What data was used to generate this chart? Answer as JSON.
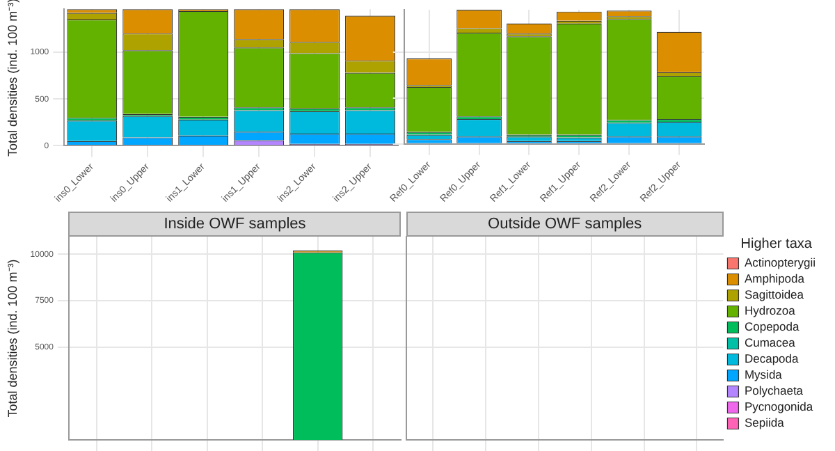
{
  "chart_data": [
    {
      "type": "bar",
      "stacked": true,
      "ylabel": "Total densities (ind. 100 m⁻³)",
      "categories": [
        "ins0_Lower",
        "ins0_Upper",
        "ins1_Lower",
        "ins1_Upper",
        "ins2_Lower",
        "ins2_Upper"
      ],
      "ylim": [
        0,
        1460
      ],
      "yticks": [
        0,
        500,
        1000
      ],
      "grid": true,
      "series": [
        {
          "color": "#b385ff",
          "values": [
            10,
            10,
            10,
            60,
            20,
            20
          ]
        },
        {
          "color": "#00a6ff",
          "values": [
            40,
            80,
            100,
            90,
            110,
            110
          ]
        },
        {
          "color": "#00bade",
          "values": [
            220,
            230,
            170,
            230,
            240,
            250
          ]
        },
        {
          "color": "#00bd5c",
          "values": [
            30,
            20,
            30,
            30,
            30,
            30
          ]
        },
        {
          "color": "#64b200",
          "values": [
            1050,
            680,
            1130,
            640,
            590,
            370
          ]
        },
        {
          "color": "#aea200",
          "values": [
            70,
            180,
            0,
            90,
            120,
            130
          ]
        },
        {
          "color": "#db8e00",
          "values": [
            40,
            260,
            20,
            320,
            350,
            480
          ]
        }
      ]
    },
    {
      "type": "bar",
      "stacked": true,
      "categories": [
        "Ref0_Lower",
        "Ref0_Upper",
        "Ref1_Lower",
        "Ref1_Upper",
        "Ref2_Lower",
        "Ref2_Upper"
      ],
      "ylim": [
        0,
        1460
      ],
      "yticks": [
        0,
        500,
        1000
      ],
      "grid": true,
      "tick_labels": "x",
      "series": [
        {
          "color": "#b385ff",
          "values": [
            0,
            0,
            0,
            0,
            null,
            null
          ]
        },
        {
          "color": "#00a6ff",
          "values": [
            50,
            80,
            30,
            30,
            80,
            80
          ]
        },
        {
          "color": "#00bade",
          "values": [
            50,
            190,
            50,
            40,
            150,
            160
          ]
        },
        {
          "color": "#00bd5c",
          "values": [
            30,
            30,
            20,
            30,
            30,
            30
          ]
        },
        {
          "color": "#64b200",
          "values": [
            490,
            910,
            1070,
            1210,
            1100,
            470
          ]
        },
        {
          "color": "#aea200",
          "values": [
            20,
            50,
            30,
            30,
            30,
            40
          ]
        },
        {
          "color": "#db8e00",
          "values": [
            290,
            200,
            110,
            100,
            60,
            440
          ]
        }
      ]
    },
    {
      "type": "bar",
      "stacked": true,
      "title": "Inside OWF samples",
      "ylabel": "Total densities (ind. 100 m⁻³)",
      "categories": [
        null,
        null,
        null,
        null,
        null,
        null
      ],
      "ylim": [
        0,
        10950
      ],
      "yticks": [
        5000,
        7500,
        10000
      ],
      "grid": true,
      "tick_labels": "y",
      "series": [
        {
          "color": "#00bd5c",
          "values": [
            null,
            null,
            null,
            null,
            10100,
            null
          ]
        },
        {
          "color": "#db8e00",
          "values": [
            null,
            null,
            null,
            null,
            100,
            null
          ]
        }
      ]
    },
    {
      "type": "bar",
      "stacked": true,
      "title": "Outside OWF samples",
      "categories": [
        null,
        null,
        null,
        null,
        null,
        null
      ],
      "ylim": [
        0,
        10950
      ],
      "yticks": [
        5000,
        7500,
        10000
      ],
      "grid": true,
      "tick_labels": false,
      "legend": "right",
      "legend_title": "Higher taxa",
      "series": [
        {
          "name": "Actinopterygii",
          "color": "#f8766d",
          "values": [
            null,
            null,
            null,
            null,
            null,
            null
          ]
        },
        {
          "name": "Amphipoda",
          "color": "#db8e00",
          "values": [
            null,
            null,
            null,
            null,
            null,
            null
          ]
        },
        {
          "name": "Sagittoidea",
          "color": "#aea200",
          "values": [
            null,
            null,
            null,
            null,
            null,
            null
          ]
        },
        {
          "name": "Hydrozoa",
          "color": "#64b200",
          "values": [
            null,
            null,
            null,
            null,
            null,
            null
          ]
        },
        {
          "name": "Copepoda",
          "color": "#00bd5c",
          "values": [
            null,
            null,
            null,
            null,
            null,
            null
          ]
        },
        {
          "name": "Cumacea",
          "color": "#00c1a7",
          "values": [
            null,
            null,
            null,
            null,
            null,
            null
          ]
        },
        {
          "name": "Decapoda",
          "color": "#00bade",
          "values": [
            null,
            null,
            null,
            null,
            null,
            null
          ]
        },
        {
          "name": "Mysida",
          "color": "#00a6ff",
          "values": [
            null,
            null,
            null,
            null,
            null,
            null
          ]
        },
        {
          "name": "Polychaeta",
          "color": "#b385ff",
          "values": [
            null,
            null,
            null,
            null,
            null,
            null
          ]
        },
        {
          "name": "Pycnogonida",
          "color": "#ef67eb",
          "values": [
            null,
            null,
            null,
            null,
            null,
            null
          ]
        },
        {
          "name": "Sepiida",
          "color": "#ff63b6",
          "values": [
            null,
            null,
            null,
            null,
            null,
            null
          ]
        }
      ]
    }
  ]
}
